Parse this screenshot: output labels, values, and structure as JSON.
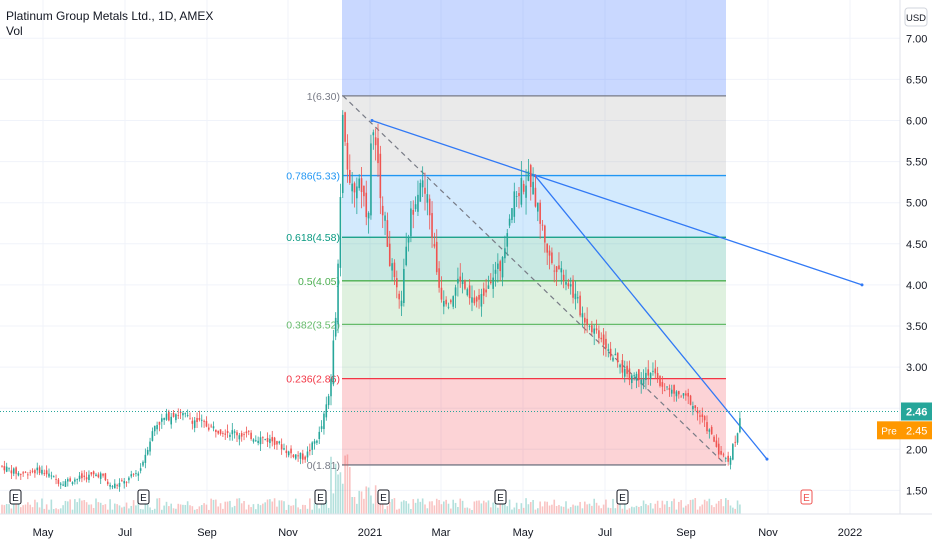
{
  "header": {
    "title": "Platinum Group Metals Ltd., 1D, AMEX",
    "indicator": "Vol",
    "currency": "USD"
  },
  "chart_data": {
    "type": "candlestick",
    "x_ticks": [
      "May",
      "Jul",
      "Sep",
      "Nov",
      "2021",
      "Mar",
      "May",
      "Jul",
      "Sep",
      "Nov",
      "2022"
    ],
    "y_ticks": [
      "7.00",
      "6.50",
      "6.00",
      "5.50",
      "5.00",
      "4.50",
      "4.00",
      "3.50",
      "3.00",
      "2.50",
      "2.00",
      "1.50"
    ],
    "ylim": [
      1.2,
      7.25
    ],
    "last_price": {
      "label": "2.46",
      "value": 2.46,
      "color": "#26a69a"
    },
    "pre_price": {
      "tag": "Pre",
      "label": "2.45",
      "value": 2.45,
      "color": "#ff9800"
    },
    "fib_levels": [
      {
        "label": "1(6.30)",
        "value": 6.3,
        "color": "#787b86"
      },
      {
        "label": "0.786(5.33)",
        "value": 5.33,
        "color": "#2196f3"
      },
      {
        "label": "0.618(4.58)",
        "value": 4.58,
        "color": "#089981"
      },
      {
        "label": "0.5(4.05)",
        "value": 4.05,
        "color": "#4caf50"
      },
      {
        "label": "0.382(3.52)",
        "value": 3.52,
        "color": "#66bb6a"
      },
      {
        "label": "0.236(2.86)",
        "value": 2.86,
        "color": "#f23645"
      },
      {
        "label": "0(1.81)",
        "value": 1.81,
        "color": "#787b86"
      }
    ],
    "earnings_markers": [
      "E",
      "E",
      "E",
      "E",
      "E",
      "E",
      "E"
    ],
    "price_path": [
      [
        0,
        1.8
      ],
      [
        20,
        1.7
      ],
      [
        40,
        1.75
      ],
      [
        60,
        1.6
      ],
      [
        80,
        1.65
      ],
      [
        100,
        1.7
      ],
      [
        110,
        1.55
      ],
      [
        125,
        1.6
      ],
      [
        140,
        1.75
      ],
      [
        155,
        2.3
      ],
      [
        175,
        2.45
      ],
      [
        195,
        2.35
      ],
      [
        215,
        2.25
      ],
      [
        235,
        2.2
      ],
      [
        255,
        2.15
      ],
      [
        275,
        2.1
      ],
      [
        290,
        1.95
      ],
      [
        305,
        1.9
      ],
      [
        320,
        2.2
      ],
      [
        330,
        2.7
      ],
      [
        337,
        3.9
      ],
      [
        343,
        6.15
      ],
      [
        350,
        5.1
      ],
      [
        360,
        5.3
      ],
      [
        368,
        4.8
      ],
      [
        372,
        5.95
      ],
      [
        380,
        5.2
      ],
      [
        390,
        4.3
      ],
      [
        400,
        3.7
      ],
      [
        410,
        4.8
      ],
      [
        420,
        5.3
      ],
      [
        428,
        5.0
      ],
      [
        440,
        3.9
      ],
      [
        450,
        3.8
      ],
      [
        460,
        4.1
      ],
      [
        470,
        3.8
      ],
      [
        480,
        3.8
      ],
      [
        490,
        4.1
      ],
      [
        500,
        4.2
      ],
      [
        510,
        4.9
      ],
      [
        520,
        5.2
      ],
      [
        530,
        5.3
      ],
      [
        540,
        4.8
      ],
      [
        550,
        4.3
      ],
      [
        560,
        4.2
      ],
      [
        570,
        4.0
      ],
      [
        580,
        3.7
      ],
      [
        590,
        3.5
      ],
      [
        600,
        3.4
      ],
      [
        610,
        3.2
      ],
      [
        620,
        3.0
      ],
      [
        630,
        2.9
      ],
      [
        640,
        2.9
      ],
      [
        650,
        2.95
      ],
      [
        660,
        2.8
      ],
      [
        670,
        2.7
      ],
      [
        680,
        2.65
      ],
      [
        690,
        2.6
      ],
      [
        700,
        2.4
      ],
      [
        710,
        2.2
      ],
      [
        720,
        1.95
      ],
      [
        728,
        1.85
      ],
      [
        735,
        2.1
      ],
      [
        742,
        2.45
      ]
    ]
  }
}
